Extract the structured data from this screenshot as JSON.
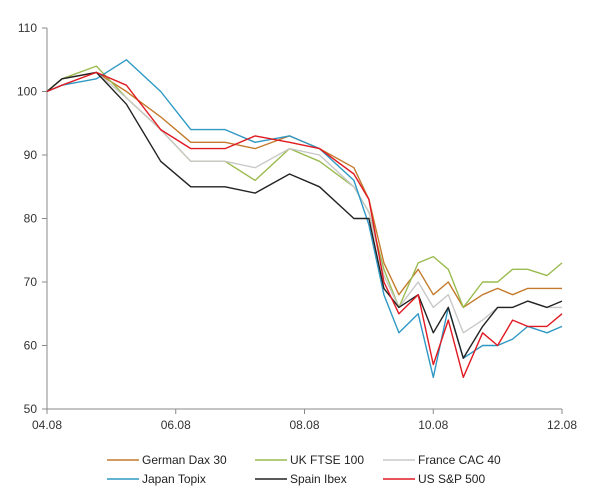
{
  "chart_data": {
    "type": "line",
    "title": "",
    "xlabel": "",
    "ylabel": "",
    "ylim": [
      50,
      110
    ],
    "yticks": [
      "50",
      "60",
      "70",
      "80",
      "90",
      "100",
      "110"
    ],
    "xticks": [
      "04.08",
      "06.08",
      "08.08",
      "10.08",
      "12.08"
    ],
    "grid": false,
    "legend_position": "bottom",
    "x": [
      "04.08",
      "04.15",
      "05.01",
      "05.15",
      "06.01",
      "06.15",
      "07.01",
      "07.15",
      "08.01",
      "08.15",
      "09.01",
      "09.08",
      "09.15",
      "09.22",
      "10.01",
      "10.08",
      "10.15",
      "10.22",
      "11.01",
      "11.08",
      "11.15",
      "11.22",
      "12.01",
      "12.08"
    ],
    "series": [
      {
        "name": "German Dax 30",
        "color": "#c47a2c",
        "values": [
          100,
          102,
          103,
          100,
          96,
          92,
          92,
          91,
          93,
          91,
          88,
          83,
          73,
          68,
          72,
          68,
          70,
          66,
          68,
          69,
          68,
          69,
          69,
          69
        ]
      },
      {
        "name": "UK FTSE 100",
        "color": "#9abb4f",
        "values": [
          100,
          102,
          104,
          99,
          94,
          89,
          89,
          86,
          91,
          89,
          85,
          81,
          72,
          66,
          73,
          74,
          72,
          66,
          70,
          70,
          72,
          72,
          71,
          73
        ]
      },
      {
        "name": "France CAC 40",
        "color": "#c8c8c8",
        "values": [
          100,
          102,
          103,
          99,
          94,
          89,
          89,
          88,
          91,
          90,
          85,
          81,
          71,
          66,
          70,
          66,
          68,
          62,
          64,
          66,
          66,
          67,
          66,
          66
        ]
      },
      {
        "name": "Japan Topix",
        "color": "#2f98c4",
        "values": [
          100,
          101,
          102,
          105,
          100,
          94,
          94,
          92,
          93,
          91,
          86,
          79,
          68,
          62,
          65,
          55,
          66,
          58,
          60,
          60,
          61,
          63,
          62,
          63
        ]
      },
      {
        "name": "Spain Ibex",
        "color": "#222222",
        "values": [
          100,
          102,
          103,
          98,
          89,
          85,
          85,
          84,
          87,
          85,
          80,
          80,
          69,
          66,
          68,
          62,
          66,
          58,
          63,
          66,
          66,
          67,
          66,
          67
        ]
      },
      {
        "name": "US S&P 500",
        "color": "#e01a22",
        "values": [
          100,
          101,
          103,
          101,
          94,
          91,
          91,
          93,
          92,
          91,
          87,
          83,
          70,
          65,
          68,
          57,
          64,
          55,
          62,
          60,
          64,
          63,
          63,
          65
        ]
      }
    ]
  }
}
